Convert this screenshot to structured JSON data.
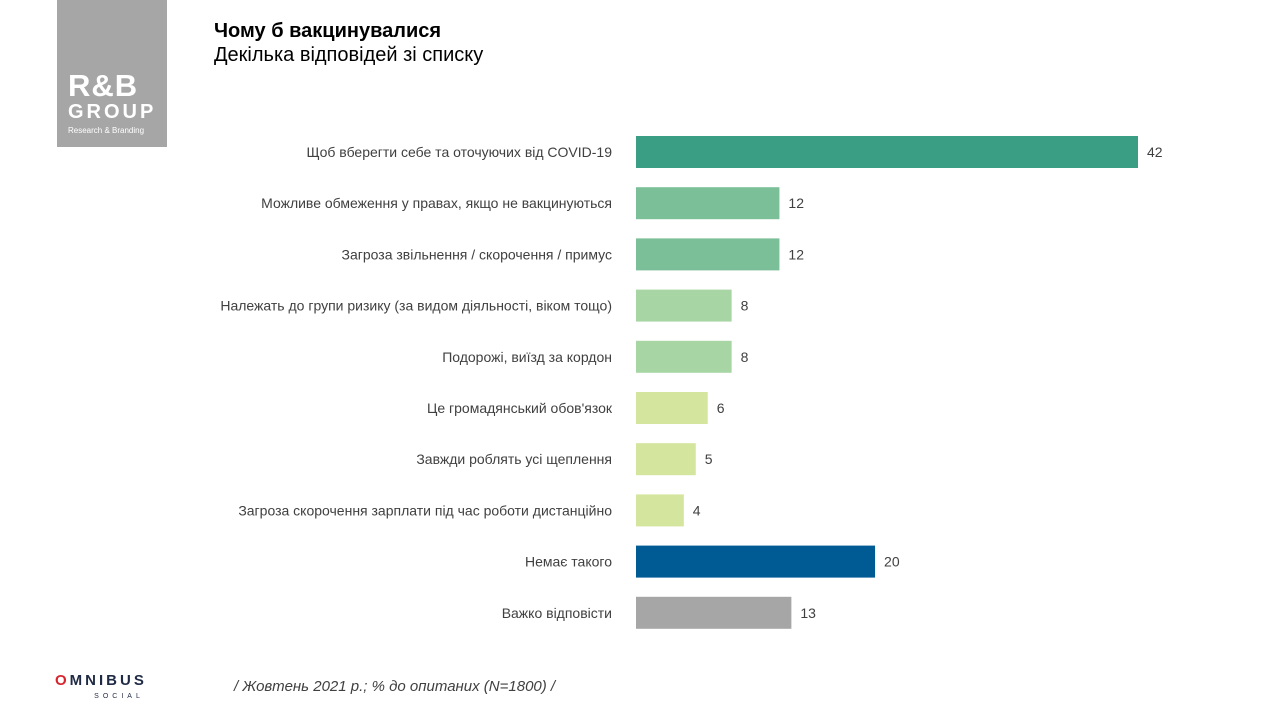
{
  "logo": {
    "mark": "R&B",
    "word": "GROUP",
    "tagline": "Research & Branding"
  },
  "title": "Чому б вакцинувалися",
  "subtitle": "Декілька відповідей  зі списку",
  "footnote": "/ Жовтень 2021 р.; % до опитаних (N=1800) /",
  "brand": {
    "omnibus_lead": "O",
    "omnibus_rest": "MNIBUS",
    "omnibus_sub": "SOCIAL"
  },
  "chart_data": {
    "type": "bar",
    "orientation": "horizontal",
    "categories": [
      "Щоб вберегти себе та оточуючих від COVID-19",
      "Можливе обмеження у правах, якщо не вакцинуються",
      "Загроза звільнення  / скорочення  / примус",
      "Належать до групи ризику (за видом діяльності, віком тощо)",
      "Подорожі, виїзд за кордон",
      "Це громадянський обов'язок",
      "Завжди роблять усі щеплення",
      "Загроза скорочення  зарплати під час роботи дистанційно",
      "Немає такого",
      "Важко відповісти"
    ],
    "values": [
      42,
      12,
      12,
      8,
      8,
      6,
      5,
      4,
      20,
      13
    ],
    "colors": [
      "#3a9e85",
      "#7bbf98",
      "#7bbf98",
      "#a8d5a4",
      "#a8d5a4",
      "#d4e59d",
      "#d4e59d",
      "#d4e59d",
      "#005a94",
      "#a6a6a6"
    ],
    "xlim": [
      0,
      42
    ]
  }
}
